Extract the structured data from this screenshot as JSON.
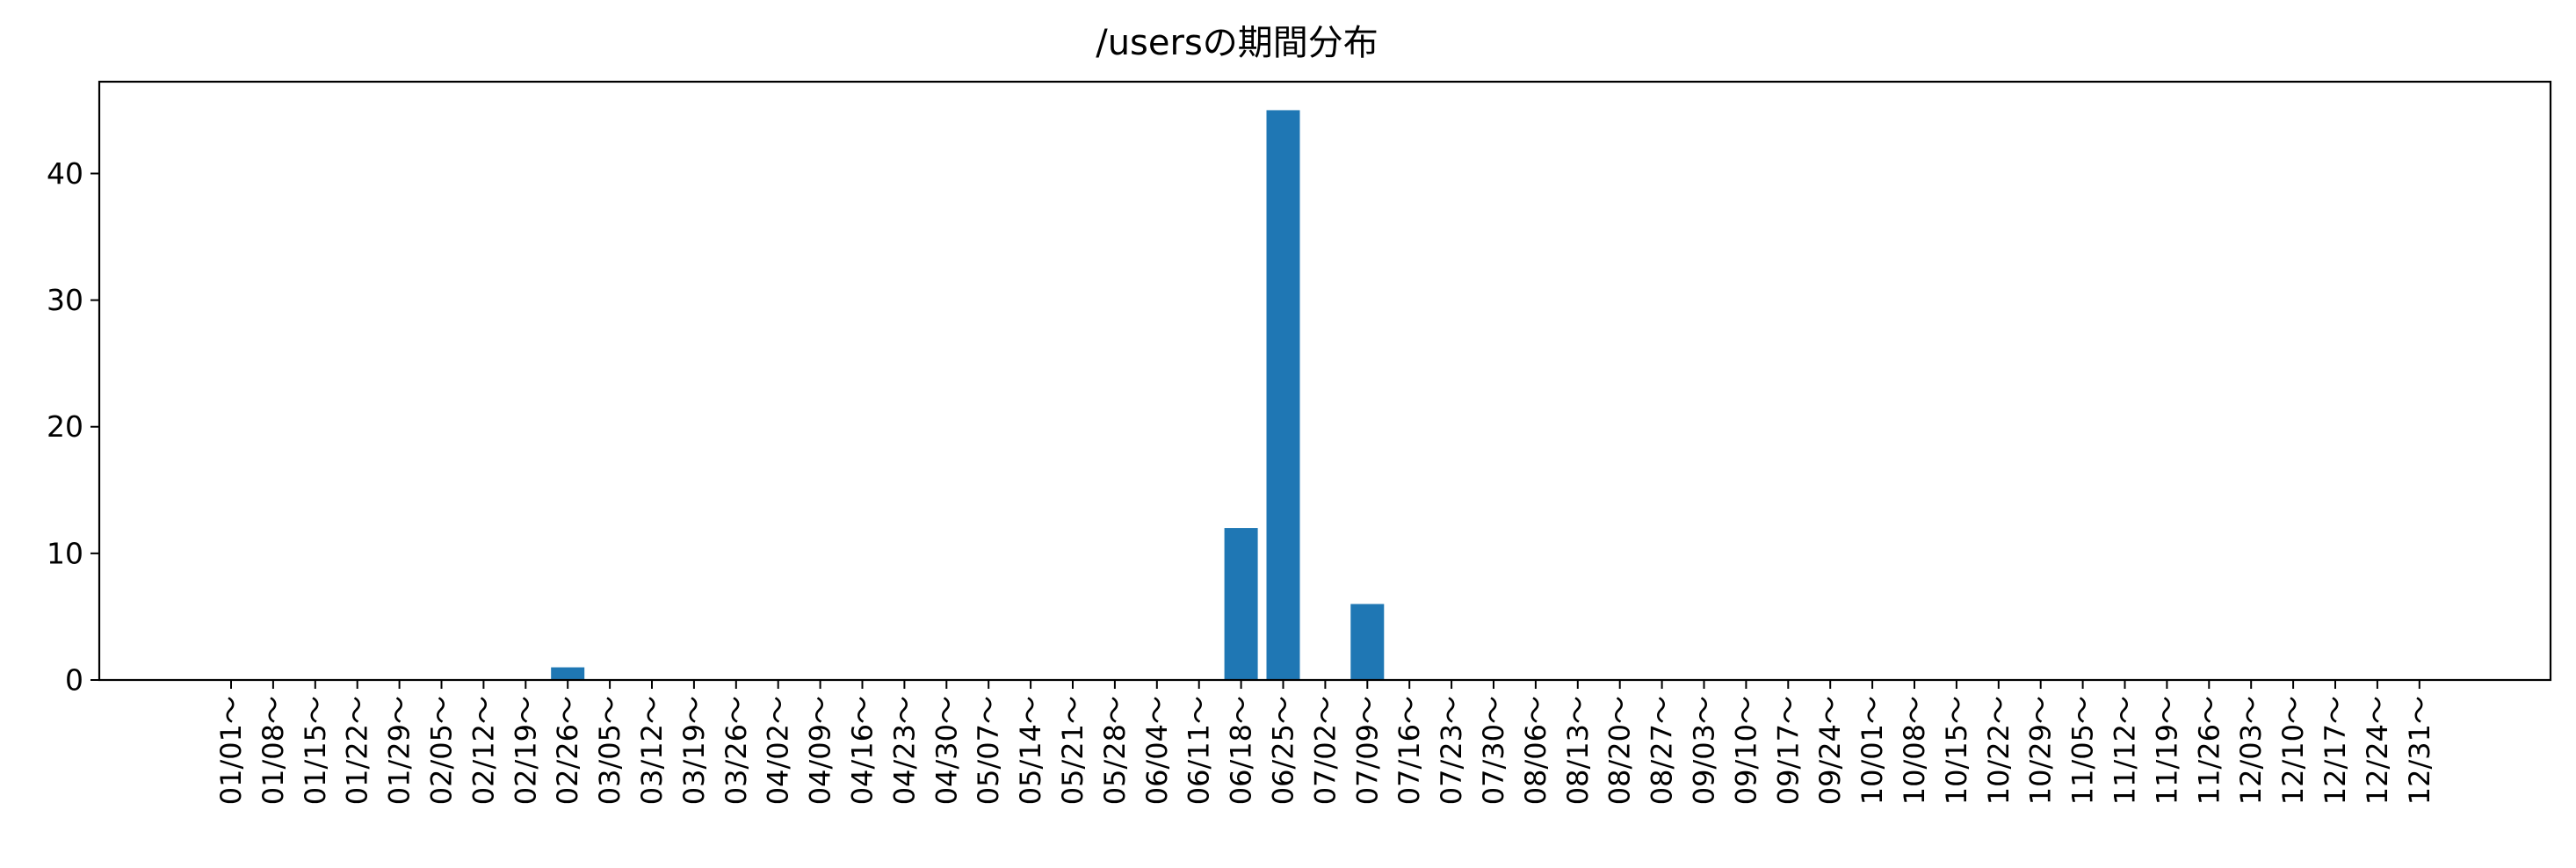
{
  "chart_data": {
    "type": "bar",
    "title": "/usersの期間分布",
    "xlabel": "",
    "ylabel": "",
    "ylim": [
      0,
      47.25
    ],
    "yticks": [
      0,
      10,
      20,
      30,
      40
    ],
    "grid": false,
    "legend": "none",
    "bar_color": "#1f77b4",
    "categories": [
      "01/01～",
      "01/08～",
      "01/15～",
      "01/22～",
      "01/29～",
      "02/05～",
      "02/12～",
      "02/19～",
      "02/26～",
      "03/05～",
      "03/12～",
      "03/19～",
      "03/26～",
      "04/02～",
      "04/09～",
      "04/16～",
      "04/23～",
      "04/30～",
      "05/07～",
      "05/14～",
      "05/21～",
      "05/28～",
      "06/04～",
      "06/11～",
      "06/18～",
      "06/25～",
      "07/02～",
      "07/09～",
      "07/16～",
      "07/23～",
      "07/30～",
      "08/06～",
      "08/13～",
      "08/20～",
      "08/27～",
      "09/03～",
      "09/10～",
      "09/17～",
      "09/24～",
      "10/01～",
      "10/08～",
      "10/15～",
      "10/22～",
      "10/29～",
      "11/05～",
      "11/12～",
      "11/19～",
      "11/26～",
      "12/03～",
      "12/10～",
      "12/17～",
      "12/24～",
      "12/31～"
    ],
    "values": [
      0,
      0,
      0,
      0,
      0,
      0,
      0,
      0,
      1,
      0,
      0,
      0,
      0,
      0,
      0,
      0,
      0,
      0,
      0,
      0,
      0,
      0,
      0,
      0,
      12,
      45,
      0,
      6,
      0,
      0,
      0,
      0,
      0,
      0,
      0,
      0,
      0,
      0,
      0,
      0,
      0,
      0,
      0,
      0,
      0,
      0,
      0,
      0,
      0,
      0,
      0,
      0,
      0
    ]
  }
}
